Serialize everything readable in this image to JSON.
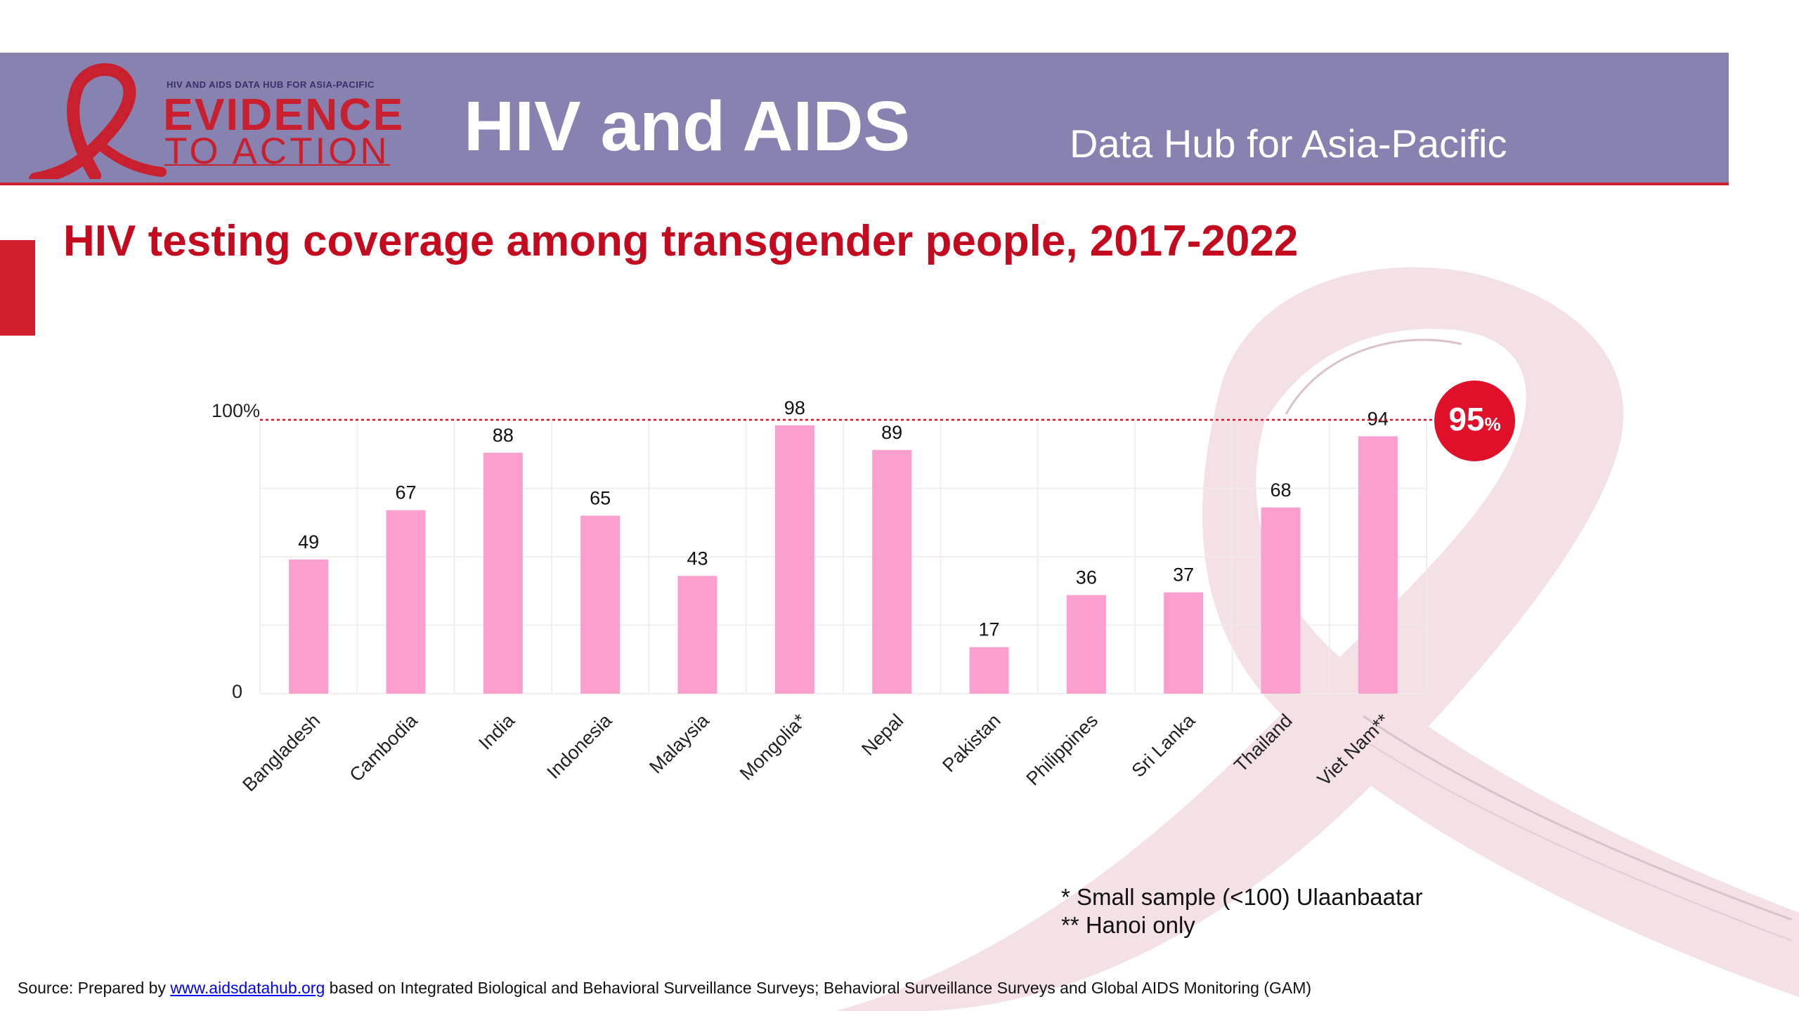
{
  "header": {
    "logo_small_text": "HIV AND AIDS DATA HUB FOR ASIA-PACIFIC",
    "logo_line1": "EVIDENCE",
    "logo_line2": "TO ACTION",
    "title": "HIV and AIDS",
    "subtitle": "Data Hub for Asia-Pacific"
  },
  "colors": {
    "header_bg": "#8882b0",
    "accent_red": "#d0202f",
    "bar_pink": "#fb9fcf",
    "ribbon_pink": "#f2dde4"
  },
  "icons": {
    "logo": "red-ribbon-icon",
    "background": "ribbon-watermark"
  },
  "target": {
    "value": "95",
    "unit": "%"
  },
  "chart_data": {
    "type": "bar",
    "title": "HIV testing coverage among transgender people, 2017-2022",
    "categories": [
      "Bangladesh",
      "Cambodia",
      "India",
      "Indonesia",
      "Malaysia",
      "Mongolia*",
      "Nepal",
      "Pakistan",
      "Philippines",
      "Sri Lanka",
      "Thailand",
      "Viet Nam**"
    ],
    "values": [
      49,
      67,
      88,
      65,
      43,
      98,
      89,
      17,
      36,
      37,
      68,
      94
    ],
    "ylim": [
      0,
      100
    ],
    "yticks": [
      "0",
      "100%"
    ],
    "reference_line": 100,
    "xlabel": "",
    "ylabel": "",
    "grid": true,
    "legend": "none"
  },
  "footnotes": [
    "* Small sample (<100) Ulaanbaatar",
    "** Hanoi only"
  ],
  "source": {
    "prefix": "Source: Prepared by ",
    "link": "www.aidsdatahub.org",
    "suffix": " based on Integrated Biological and Behavioral Surveillance Surveys; Behavioral Surveillance Surveys and Global AIDS Monitoring (GAM)"
  }
}
